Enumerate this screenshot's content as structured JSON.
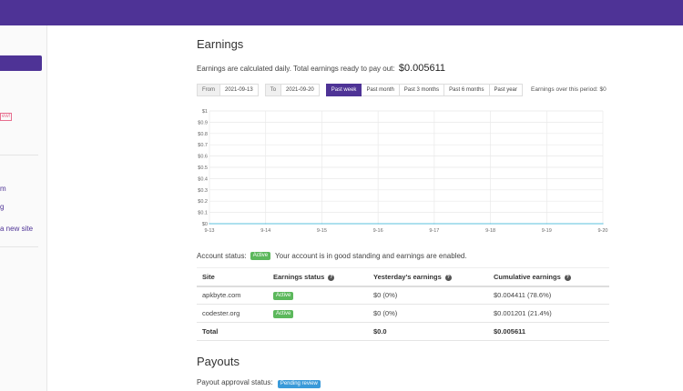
{
  "sidebar": {
    "badge": "ew!",
    "links": [
      "m",
      "g",
      "a new site"
    ]
  },
  "page": {
    "title": "Earnings",
    "info_text": "Earnings are calculated daily. Total earnings ready to pay out:",
    "payout_amount": "$0.005611"
  },
  "filters": {
    "from_label": "From",
    "from_value": "2021-09-13",
    "to_label": "To",
    "to_value": "2021-09-20",
    "ranges": [
      "Past week",
      "Past month",
      "Past 3 months",
      "Past 6 months",
      "Past year"
    ],
    "active_range": "Past week",
    "period_label": "Earnings over this period: $0"
  },
  "chart_data": {
    "type": "line",
    "x": [
      "9-13",
      "9-14",
      "9-15",
      "9-16",
      "9-17",
      "9-18",
      "9-19",
      "9-20"
    ],
    "series": [
      {
        "values": [
          0,
          0,
          0,
          0,
          0,
          0,
          0,
          0
        ]
      }
    ],
    "y_ticks": [
      "$0",
      "$0.1",
      "$0.2",
      "$0.3",
      "$0.4",
      "$0.5",
      "$0.6",
      "$0.7",
      "$0.8",
      "$0.9",
      "$1"
    ],
    "ylim": [
      0,
      1
    ],
    "grid": true,
    "line_color": "#5bc0de"
  },
  "account": {
    "label": "Account status:",
    "badge": "Active",
    "message": "Your account is in good standing and earnings are enabled."
  },
  "table": {
    "headers": [
      "Site",
      "Earnings status",
      "Yesterday's earnings",
      "Cumulative earnings"
    ],
    "rows": [
      {
        "site": "apkbyte.com",
        "status": "Active",
        "yesterday": "$0 (0%)",
        "cumulative": "$0.004411 (78.6%)"
      },
      {
        "site": "codester.org",
        "status": "Active",
        "yesterday": "$0 (0%)",
        "cumulative": "$0.001201 (21.4%)"
      }
    ],
    "total": {
      "label": "Total",
      "yesterday": "$0.0",
      "cumulative": "$0.005611"
    }
  },
  "payouts": {
    "title": "Payouts",
    "label": "Payout approval status:",
    "badge": "Pending review"
  },
  "colors": {
    "brand": "#4e3396",
    "success": "#5cb85c",
    "info": "#3a9ad9",
    "chart_line": "#5bc0de"
  }
}
